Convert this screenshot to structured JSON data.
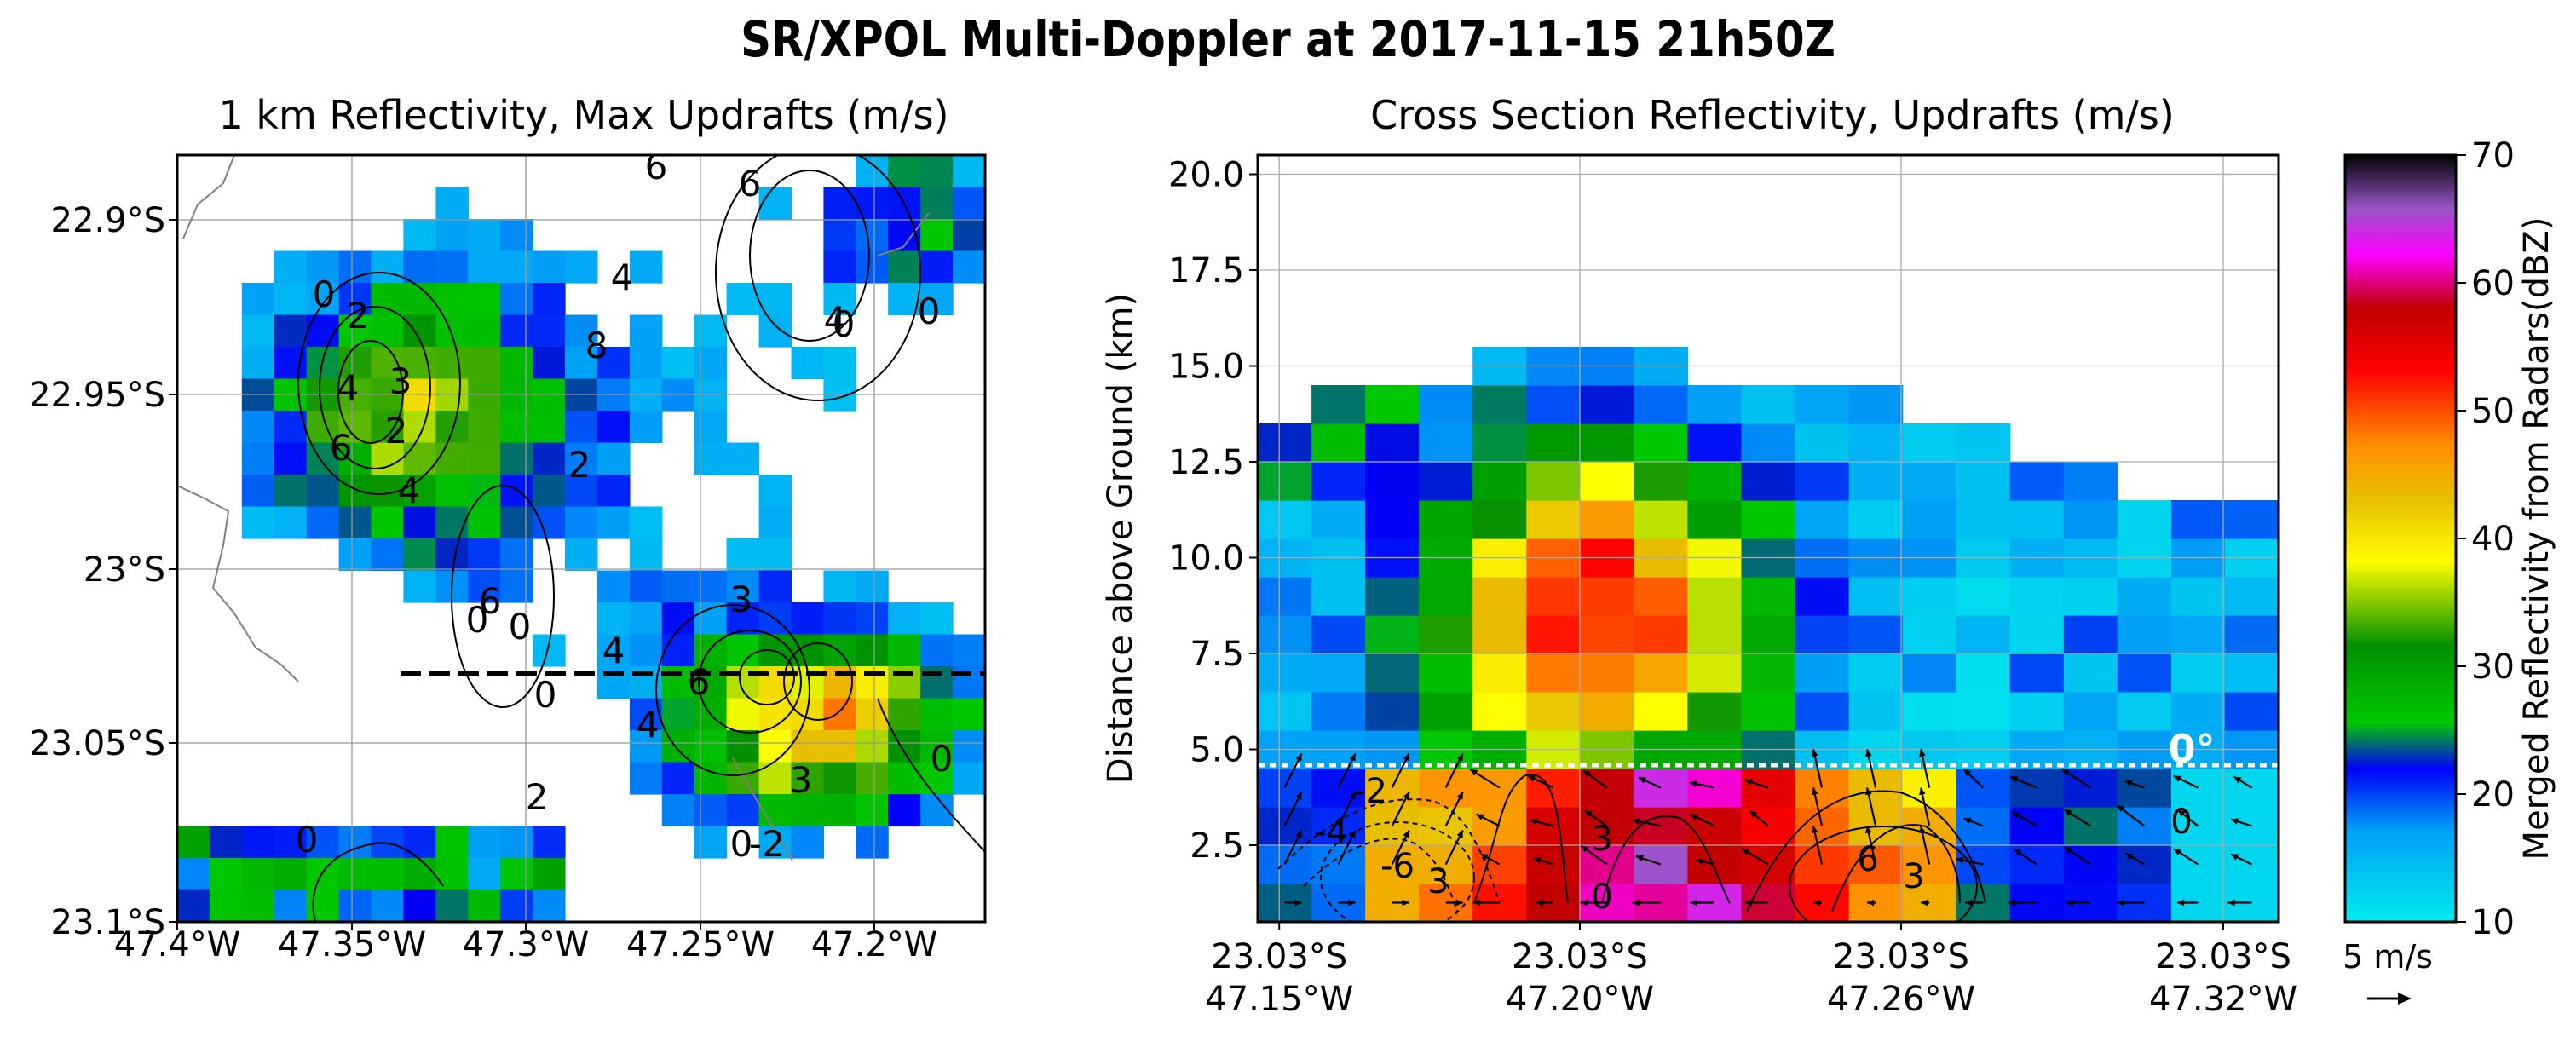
{
  "title": "SR/XPOL Multi-Doppler at 2017-11-15 21h50Z",
  "chart_data": [
    {
      "type": "heatmap",
      "title": "1 km Reflectivity, Max Updrafts (m/s)",
      "xticks": [
        "47.4°W",
        "47.35°W",
        "47.3°W",
        "47.25°W",
        "47.2°W"
      ],
      "yticks": [
        "22.9°S",
        "22.95°S",
        "23°S",
        "23.05°S",
        "23.1°S"
      ],
      "xlim": [
        47.4,
        47.135
      ],
      "ylim": [
        23.1,
        22.88
      ],
      "cross_section_lat": 23.03,
      "cross_section_lon": [
        47.325,
        47.135
      ],
      "contour_labels": [
        "0",
        "2",
        "4",
        "6",
        "3",
        "2",
        "4",
        "6",
        "0",
        "0",
        "2",
        "4",
        "6",
        "8",
        "4",
        "4",
        "6",
        "3",
        "-2",
        "0",
        "2",
        "0",
        "0",
        "0",
        "4",
        "6",
        "3",
        "0",
        "0"
      ],
      "grid": true
    },
    {
      "type": "heatmap",
      "title": "Cross Section Reflectivity, Updrafts (m/s)",
      "ylabel": "Distance above Ground (km)",
      "yticks": [
        "2.5",
        "5.0",
        "7.5",
        "10.0",
        "12.5",
        "15.0",
        "17.5",
        "20.0"
      ],
      "ylim": [
        0.5,
        20.5
      ],
      "xticks": [
        {
          "line1": "23.03°S",
          "line2": "47.15°W"
        },
        {
          "line1": "23.03°S",
          "line2": "47.20°W"
        },
        {
          "line1": "23.03°S",
          "line2": "47.26°W"
        },
        {
          "line1": "23.03°S",
          "line2": "47.32°W"
        }
      ],
      "freezing_level_km": 4.5,
      "freezing_label": "0°",
      "contour_labels": [
        "-2",
        "-4",
        "-6",
        "3",
        "0",
        "3",
        "6",
        "3",
        "0"
      ],
      "grid": true
    }
  ],
  "colorbar": {
    "label": "Merged Reflectivity from Radars(dBZ)",
    "ticks": [
      "10",
      "20",
      "30",
      "40",
      "50",
      "60",
      "70"
    ],
    "range": [
      10,
      70
    ]
  },
  "quiver_key": {
    "label": "5 m/s"
  }
}
